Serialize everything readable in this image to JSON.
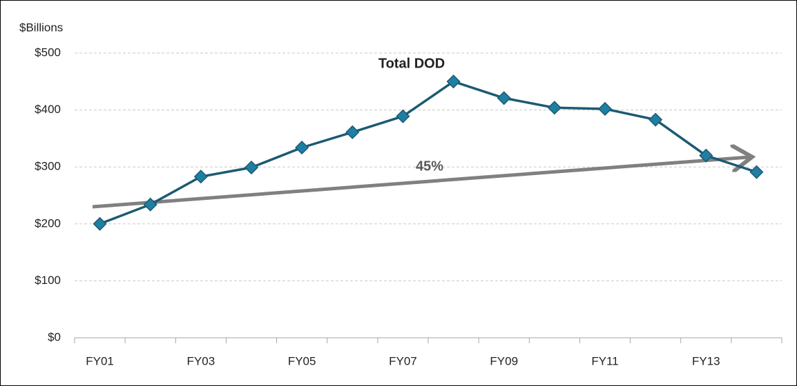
{
  "chart_data": {
    "type": "line",
    "y_label": "$Billions",
    "annotations": [
      "Total DOD",
      "45%"
    ],
    "categories": [
      "FY01",
      null,
      "FY03",
      null,
      "FY05",
      null,
      "FY07",
      null,
      "FY09",
      null,
      "FY11",
      null,
      "FY13",
      null
    ],
    "series": [
      {
        "name": "Total DOD",
        "color": "#1b5a72",
        "marker_color": "#1f7fa3",
        "values": [
          200,
          234,
          283,
          299,
          334,
          361,
          389,
          450,
          421,
          404,
          402,
          383,
          320,
          291
        ]
      }
    ],
    "ylim": [
      0,
      500
    ],
    "yticks": [
      {
        "value": 0,
        "label": "$0"
      },
      {
        "value": 100,
        "label": "$100"
      },
      {
        "value": 200,
        "label": "$200"
      },
      {
        "value": 300,
        "label": "$300"
      },
      {
        "value": 400,
        "label": "$400"
      },
      {
        "value": 500,
        "label": "$500"
      }
    ],
    "grid": true
  }
}
